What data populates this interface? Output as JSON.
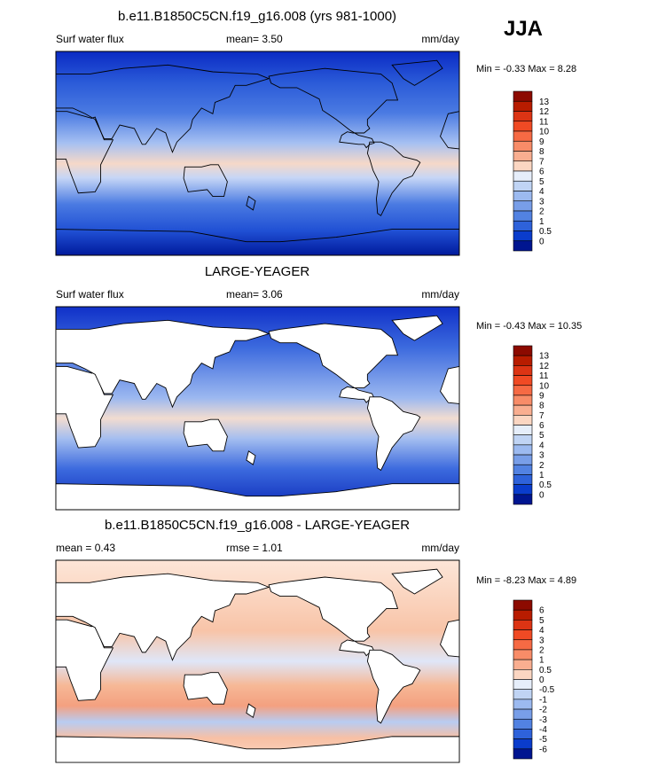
{
  "season": "JJA",
  "panels": [
    {
      "title": "b.e11.B1850C5CN.f19_g16.008 (yrs 981-1000)",
      "left_label": "Surf water flux",
      "center_label": "mean=   3.50",
      "units": "mm/day",
      "min_max": "Min =  -0.33 Max =   8.28",
      "colorbar": {
        "labels": [
          "13",
          "12",
          "11",
          "10",
          "9",
          "8",
          "7",
          "6",
          "5",
          "4",
          "3",
          "2",
          "1",
          "0.5",
          "0"
        ],
        "colors": [
          "#8c0a00",
          "#b81c00",
          "#dc3414",
          "#f04a24",
          "#f66a44",
          "#f88c68",
          "#f9ae90",
          "#fbd6c2",
          "#e6eefa",
          "#c0d4f4",
          "#9cbaf0",
          "#789ee8",
          "#5282e2",
          "#2e62da",
          "#0a3ccc",
          "#001590"
        ]
      }
    },
    {
      "title": "LARGE-YEAGER",
      "left_label": "Surf water flux",
      "center_label": "mean=   3.06",
      "units": "mm/day",
      "min_max": "Min =  -0.43 Max = 10.35",
      "colorbar": {
        "labels": [
          "13",
          "12",
          "11",
          "10",
          "9",
          "8",
          "7",
          "6",
          "5",
          "4",
          "3",
          "2",
          "1",
          "0.5",
          "0"
        ],
        "colors": [
          "#8c0a00",
          "#b81c00",
          "#dc3414",
          "#f04a24",
          "#f66a44",
          "#f88c68",
          "#f9ae90",
          "#fbd6c2",
          "#e6eefa",
          "#c0d4f4",
          "#9cbaf0",
          "#789ee8",
          "#5282e2",
          "#2e62da",
          "#0a3ccc",
          "#001590"
        ]
      }
    },
    {
      "title": "b.e11.B1850C5CN.f19_g16.008 - LARGE-YEAGER",
      "left_label": "mean =   0.43",
      "center_label": "rmse =   1.01",
      "units": "mm/day",
      "min_max": "Min =  -8.23 Max =   4.89",
      "colorbar": {
        "labels": [
          "6",
          "5",
          "4",
          "3",
          "2",
          "1",
          "0.5",
          "0",
          "-0.5",
          "-1",
          "-2",
          "-3",
          "-4",
          "-5",
          "-6"
        ],
        "colors": [
          "#8c0a00",
          "#b81c00",
          "#dc3414",
          "#f04a24",
          "#f66a44",
          "#f88c68",
          "#f9ae90",
          "#fbd6c2",
          "#e6eefa",
          "#c0d4f4",
          "#9cbaf0",
          "#789ee8",
          "#5282e2",
          "#2e62da",
          "#0a3ccc",
          "#001590"
        ]
      }
    }
  ]
}
